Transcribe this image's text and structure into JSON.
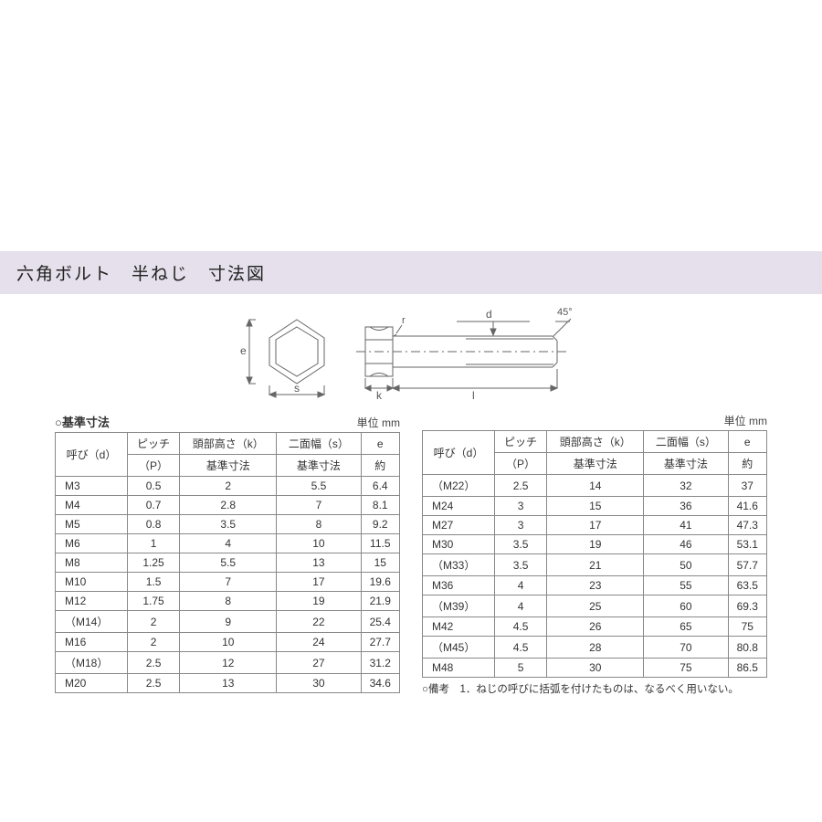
{
  "title": "六角ボルト　半ねじ　寸法図",
  "diagram": {
    "labels": {
      "e": "e",
      "s": "s",
      "k": "k",
      "l": "l",
      "d": "d",
      "r": "r",
      "angle": "45°"
    },
    "stroke": "#666666",
    "fill": "#ffffff"
  },
  "subhead": "○基準寸法",
  "unit_label": "単位 mm",
  "columns": {
    "c1a": "呼び（d）",
    "c2a": "ピッチ",
    "c2b": "（P）",
    "c3a": "頭部高さ（k）",
    "c3b": "基準寸法",
    "c4a": "二面幅（s）",
    "c4b": "基準寸法",
    "c5a": "e",
    "c5b": "約"
  },
  "table1_rows": [
    [
      "M3",
      "0.5",
      "2",
      "5.5",
      "6.4"
    ],
    [
      "M4",
      "0.7",
      "2.8",
      "7",
      "8.1"
    ],
    [
      "M5",
      "0.8",
      "3.5",
      "8",
      "9.2"
    ],
    [
      "M6",
      "1",
      "4",
      "10",
      "11.5"
    ],
    [
      "M8",
      "1.25",
      "5.5",
      "13",
      "15"
    ],
    [
      "M10",
      "1.5",
      "7",
      "17",
      "19.6"
    ],
    [
      "M12",
      "1.75",
      "8",
      "19",
      "21.9"
    ],
    [
      "（M14）",
      "2",
      "9",
      "22",
      "25.4"
    ],
    [
      "M16",
      "2",
      "10",
      "24",
      "27.7"
    ],
    [
      "（M18）",
      "2.5",
      "12",
      "27",
      "31.2"
    ],
    [
      "M20",
      "2.5",
      "13",
      "30",
      "34.6"
    ]
  ],
  "table2_rows": [
    [
      "（M22）",
      "2.5",
      "14",
      "32",
      "37"
    ],
    [
      "M24",
      "3",
      "15",
      "36",
      "41.6"
    ],
    [
      "M27",
      "3",
      "17",
      "41",
      "47.3"
    ],
    [
      "M30",
      "3.5",
      "19",
      "46",
      "53.1"
    ],
    [
      "（M33）",
      "3.5",
      "21",
      "50",
      "57.7"
    ],
    [
      "M36",
      "4",
      "23",
      "55",
      "63.5"
    ],
    [
      "（M39）",
      "4",
      "25",
      "60",
      "69.3"
    ],
    [
      "M42",
      "4.5",
      "26",
      "65",
      "75"
    ],
    [
      "（M45）",
      "4.5",
      "28",
      "70",
      "80.8"
    ],
    [
      "M48",
      "5",
      "30",
      "75",
      "86.5"
    ]
  ],
  "note": "○備考　1．ねじの呼びに括弧を付けたものは、なるべく用いない。"
}
